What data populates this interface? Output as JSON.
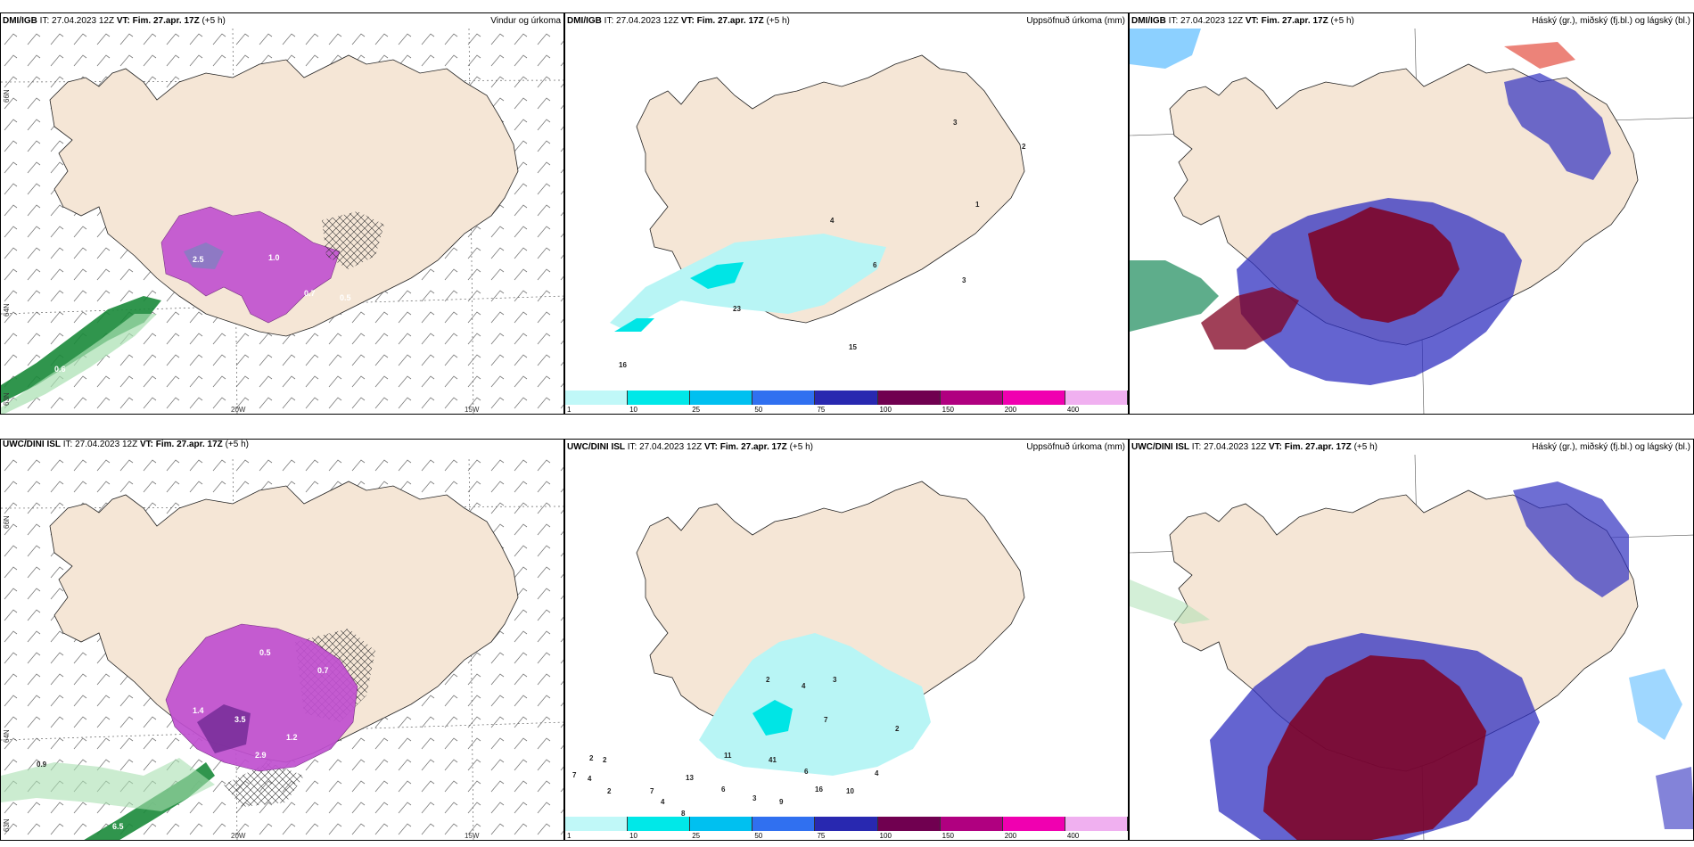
{
  "colors": {
    "land": "#f5e6d6",
    "precip_light": "#b8f5f5",
    "precip_mid": "#00e5e5",
    "wind_purple": "#c050d0",
    "wind_green": "#1a8a3a",
    "cloud_high": "#3030c0",
    "cloud_mid": "#800020",
    "cloud_low": "#40b0ff"
  },
  "colorbar": {
    "ticks": [
      "1",
      "10",
      "25",
      "50",
      "75",
      "100",
      "150",
      "200",
      "400"
    ],
    "colors": [
      "#c0f8f8",
      "#00e8e8",
      "#00c0f0",
      "#3070f0",
      "#2828b0",
      "#700050",
      "#b00080",
      "#f000b0",
      "#f0b0f0"
    ]
  },
  "panels": [
    {
      "id": "top-left",
      "model": "DMI/IGB",
      "it_label": "IT: 27.04.2023 12Z",
      "vt_label": "VT: Fim. 27.apr. 17Z",
      "lead": "(+5 h)",
      "title": "Vindur og úrkoma",
      "lon_labels": [
        "20W",
        "15W"
      ],
      "lat_labels": [
        "66N",
        "64N",
        "63N"
      ],
      "values": [
        "2.5",
        "1.0",
        "0.7",
        "0.5",
        "0.6"
      ]
    },
    {
      "id": "top-middle",
      "model": "DMI/IGB",
      "it_label": "IT: 27.04.2023 12Z",
      "vt_label": "VT: Fim. 27.apr. 17Z",
      "lead": "(+5 h)",
      "title": "Uppsöfnuð úrkoma (mm)",
      "values": [
        "3",
        "2",
        "1",
        "4",
        "6",
        "3",
        "23",
        "15",
        "16"
      ]
    },
    {
      "id": "top-right",
      "model": "DMI/IGB",
      "it_label": "IT: 27.04.2023 12Z",
      "vt_label": "VT: Fim. 27.apr. 17Z",
      "lead": "(+5 h)",
      "title": "Háský (gr.), miðský (fj.bl.) og lágský (bl.)"
    },
    {
      "id": "bottom-left",
      "model": "UWC/DINI ISL",
      "it_label": "IT: 27.04.2023 12Z",
      "vt_label": "VT: Fim. 27.apr. 17Z",
      "lead": "(+5",
      "lead_wrap": "h)",
      "title": "",
      "lon_labels": [
        "20W",
        "15W"
      ],
      "lat_labels": [
        "66N",
        "64N",
        "63N"
      ],
      "values": [
        "0.9",
        "3.5",
        "1.4",
        "0.7",
        "0.5",
        "1.2",
        "2.9",
        "6.5"
      ]
    },
    {
      "id": "bottom-middle",
      "model": "UWC/DINI ISL",
      "it_label": "IT: 27.04.2023 12Z",
      "vt_label": "VT: Fim. 27.apr. 17Z",
      "lead": "(+5 h)",
      "title": "Uppsöfnuð úrkoma (mm)",
      "values": [
        "2",
        "4",
        "3",
        "7",
        "2",
        "11",
        "41",
        "6",
        "16",
        "10",
        "13",
        "7",
        "4",
        "6",
        "3",
        "9",
        "2",
        "8",
        "4",
        "2",
        "2",
        "7",
        "4"
      ]
    },
    {
      "id": "bottom-right",
      "model": "UWC/DINI ISL",
      "it_label": "IT: 27.04.2023 12Z",
      "vt_label": "VT: Fim. 27.apr. 17Z",
      "lead": "(+5 h)",
      "title": "Háský (gr.), miðský (fj.bl.) og lágský (bl.)"
    }
  ]
}
